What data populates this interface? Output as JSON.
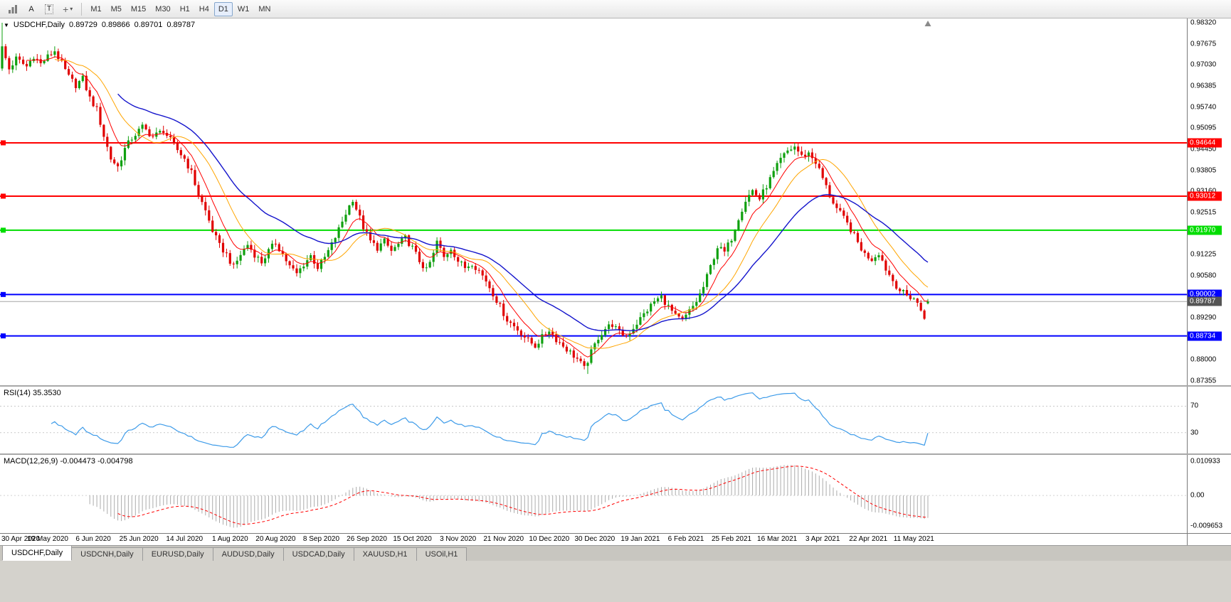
{
  "toolbar": {
    "letter_tool_a": "A",
    "letter_tool_t": "T",
    "timeframes": [
      "M1",
      "M5",
      "M15",
      "M30",
      "H1",
      "H4",
      "D1",
      "W1",
      "MN"
    ],
    "active_timeframe": "D1"
  },
  "chart": {
    "expand_arrow": "▼",
    "title_symbol": "USDCHF,Daily",
    "ohlc": {
      "open": "0.89729",
      "high": "0.89866",
      "low": "0.89701",
      "close": "0.89787"
    }
  },
  "chart_data": {
    "type": "candlestick",
    "symbol": "USDCHF",
    "timeframe": "Daily",
    "title": "USDCHF,Daily",
    "current_ohlc": {
      "open": 0.89729,
      "high": 0.89866,
      "low": 0.89701,
      "close": 0.89787
    },
    "y_axis": {
      "min": 0.87355,
      "max": 0.9832,
      "tick_step": 0.00645
    },
    "x_labels": [
      "30 Apr 2020",
      "19 May 2020",
      "6 Jun 2020",
      "25 Jun 2020",
      "14 Jul 2020",
      "1 Aug 2020",
      "20 Aug 2020",
      "8 Sep 2020",
      "26 Sep 2020",
      "15 Oct 2020",
      "3 Nov 2020",
      "21 Nov 2020",
      "10 Dec 2020",
      "30 Dec 2020",
      "19 Jan 2021",
      "6 Feb 2021",
      "25 Feb 2021",
      "16 Mar 2021",
      "3 Apr 2021",
      "22 Apr 2021",
      "11 May 2021"
    ],
    "bars": 265,
    "bars_per_label": 13,
    "shift_fraction": 0.78,
    "candle_colors": {
      "up": "#0FA00F",
      "down": "#E00000"
    },
    "close_waypoints": [
      [
        0,
        0.9755
      ],
      [
        2,
        0.969
      ],
      [
        4,
        0.9722
      ],
      [
        7,
        0.9698
      ],
      [
        9,
        0.9731
      ],
      [
        11,
        0.9706
      ],
      [
        13,
        0.9728
      ],
      [
        15,
        0.9746
      ],
      [
        17,
        0.9706
      ],
      [
        19,
        0.9666
      ],
      [
        21,
        0.9641
      ],
      [
        23,
        0.9661
      ],
      [
        25,
        0.9601
      ],
      [
        27,
        0.9566
      ],
      [
        29,
        0.9486
      ],
      [
        31,
        0.9416
      ],
      [
        33,
        0.9391
      ],
      [
        35,
        0.9446
      ],
      [
        37,
        0.9479
      ],
      [
        40,
        0.9513
      ],
      [
        43,
        0.9483
      ],
      [
        46,
        0.9503
      ],
      [
        49,
        0.9456
      ],
      [
        52,
        0.9416
      ],
      [
        54,
        0.9373
      ],
      [
        56,
        0.9306
      ],
      [
        58,
        0.9256
      ],
      [
        60,
        0.9196
      ],
      [
        62,
        0.9149
      ],
      [
        64,
        0.9123
      ],
      [
        66,
        0.9083
      ],
      [
        68,
        0.9123
      ],
      [
        70,
        0.9153
      ],
      [
        72,
        0.9123
      ],
      [
        74,
        0.9099
      ],
      [
        76,
        0.9133
      ],
      [
        78,
        0.9159
      ],
      [
        80,
        0.9123
      ],
      [
        82,
        0.9086
      ],
      [
        84,
        0.9063
      ],
      [
        86,
        0.9093
      ],
      [
        88,
        0.9119
      ],
      [
        90,
        0.9083
      ],
      [
        92,
        0.9113
      ],
      [
        94,
        0.9153
      ],
      [
        96,
        0.9199
      ],
      [
        98,
        0.9249
      ],
      [
        100,
        0.9293
      ],
      [
        101,
        0.9263
      ],
      [
        103,
        0.9206
      ],
      [
        105,
        0.9163
      ],
      [
        107,
        0.9143
      ],
      [
        109,
        0.9163
      ],
      [
        111,
        0.9133
      ],
      [
        113,
        0.9153
      ],
      [
        115,
        0.9173
      ],
      [
        117,
        0.9143
      ],
      [
        119,
        0.9103
      ],
      [
        121,
        0.9073
      ],
      [
        123,
        0.9123
      ],
      [
        124,
        0.9163
      ],
      [
        126,
        0.9113
      ],
      [
        128,
        0.9143
      ],
      [
        130,
        0.9103
      ],
      [
        132,
        0.9083
      ],
      [
        134,
        0.9097
      ],
      [
        136,
        0.9073
      ],
      [
        138,
        0.9043
      ],
      [
        140,
        0.9003
      ],
      [
        142,
        0.8963
      ],
      [
        144,
        0.8923
      ],
      [
        146,
        0.8903
      ],
      [
        148,
        0.8883
      ],
      [
        150,
        0.8859
      ],
      [
        152,
        0.8843
      ],
      [
        154,
        0.8869
      ],
      [
        156,
        0.8893
      ],
      [
        158,
        0.8863
      ],
      [
        160,
        0.8843
      ],
      [
        162,
        0.8823
      ],
      [
        164,
        0.8803
      ],
      [
        166,
        0.8773
      ],
      [
        168,
        0.8823
      ],
      [
        170,
        0.8869
      ],
      [
        172,
        0.8896
      ],
      [
        174,
        0.8909
      ],
      [
        176,
        0.8883
      ],
      [
        178,
        0.8873
      ],
      [
        180,
        0.8899
      ],
      [
        182,
        0.8926
      ],
      [
        184,
        0.8953
      ],
      [
        186,
        0.8979
      ],
      [
        188,
        0.8993
      ],
      [
        190,
        0.8963
      ],
      [
        192,
        0.8933
      ],
      [
        194,
        0.8919
      ],
      [
        196,
        0.8949
      ],
      [
        198,
        0.8979
      ],
      [
        200,
        0.9023
      ],
      [
        202,
        0.9086
      ],
      [
        204,
        0.9146
      ],
      [
        206,
        0.9129
      ],
      [
        208,
        0.9173
      ],
      [
        210,
        0.9236
      ],
      [
        212,
        0.9289
      ],
      [
        214,
        0.9319
      ],
      [
        216,
        0.9293
      ],
      [
        218,
        0.9333
      ],
      [
        220,
        0.9373
      ],
      [
        222,
        0.9413
      ],
      [
        224,
        0.9439
      ],
      [
        226,
        0.9453
      ],
      [
        228,
        0.9423
      ],
      [
        230,
        0.9433
      ],
      [
        232,
        0.9406
      ],
      [
        234,
        0.9356
      ],
      [
        236,
        0.9303
      ],
      [
        238,
        0.9263
      ],
      [
        240,
        0.9233
      ],
      [
        242,
        0.9199
      ],
      [
        244,
        0.9159
      ],
      [
        246,
        0.9123
      ],
      [
        248,
        0.9109
      ],
      [
        250,
        0.9129
      ],
      [
        252,
        0.9079
      ],
      [
        254,
        0.9043
      ],
      [
        256,
        0.9013
      ],
      [
        258,
        0.8996
      ],
      [
        260,
        0.8989
      ],
      [
        262,
        0.8953
      ],
      [
        263,
        0.8933
      ],
      [
        264,
        0.89787
      ]
    ],
    "key_extremes": {
      "0": {
        "open": 0.9692,
        "high": 0.9832,
        "low": 0.9685
      },
      "33": {
        "low": 0.9376
      },
      "167": {
        "low": 0.8757
      },
      "226": {
        "high": 0.9464
      },
      "264": {
        "open": 0.89729,
        "high": 0.89866,
        "low": 0.89701,
        "close": 0.89787
      }
    },
    "horizontal_lines": [
      {
        "price": 0.94644,
        "color": "#FF0000",
        "label": "0.94644"
      },
      {
        "price": 0.93012,
        "color": "#FF0000",
        "label": "0.93012"
      },
      {
        "price": 0.9197,
        "color": "#00DD00",
        "label": "0.91970"
      },
      {
        "price": 0.90002,
        "color": "#0000FF",
        "label": "0.90002"
      },
      {
        "price": 0.88734,
        "color": "#0000FF",
        "label": "0.88734"
      }
    ],
    "current_price_line": {
      "price": 0.89787,
      "label": "0.89787",
      "line_color": "#A6A6A6",
      "badge_color": "#555555"
    },
    "moving_averages": [
      {
        "period": 8,
        "method": "ema",
        "color": "#FF0000",
        "width": 1
      },
      {
        "period": 16,
        "method": "sma",
        "color": "#FFA500",
        "width": 1
      },
      {
        "period": 34,
        "method": "ema",
        "color": "#1414CC",
        "width": 1.4
      }
    ]
  },
  "rsi_panel": {
    "label": "RSI(14) 35.3530",
    "period": 14,
    "value": 35.353,
    "line_color": "#3D9BE9",
    "levels": [
      {
        "text": "70",
        "value": 70
      },
      {
        "text": "30",
        "value": 30
      }
    ]
  },
  "macd_panel": {
    "label": "MACD(12,26,9) -0.004473 -0.004798",
    "fast": 12,
    "slow": 26,
    "signal": 9,
    "macd_value": -0.004473,
    "signal_value": -0.004798,
    "histogram_color": "#ABABAB",
    "signal_color": "#FF0000",
    "axis_labels": [
      {
        "text": "0.010933",
        "value": 0.010933
      },
      {
        "text": "0.00",
        "value": 0
      },
      {
        "text": "-0.009653",
        "value": -0.009653
      }
    ]
  },
  "bottom_tabs": {
    "items": [
      "USDCHF,Daily",
      "USDCNH,Daily",
      "EURUSD,Daily",
      "AUDUSD,Daily",
      "USDCAD,Daily",
      "XAUUSD,H1",
      "USOil,H1"
    ],
    "active_index": 0
  }
}
